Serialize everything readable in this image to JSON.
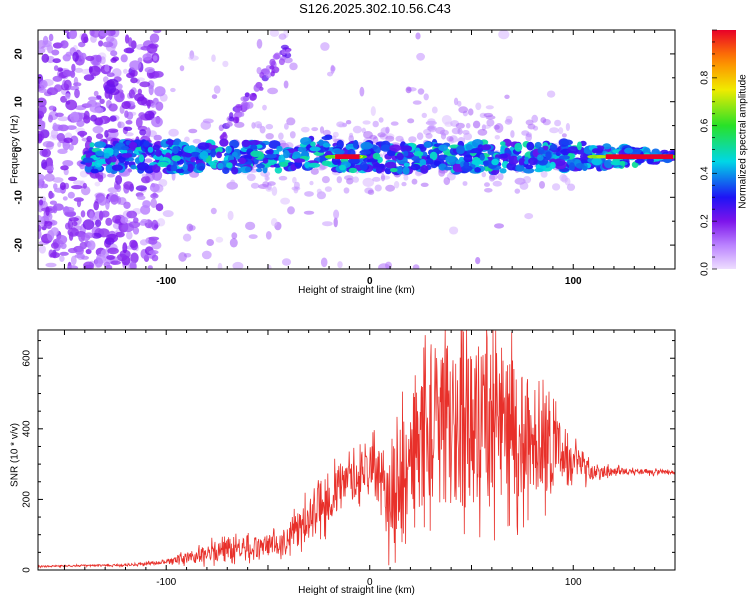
{
  "title": "S126.2025.302.10.56.C43",
  "chart_data": [
    {
      "type": "heatmap",
      "title": "",
      "xlabel": "Height of straight line (km)",
      "ylabel": "Frequency (Hz)",
      "xlim": [
        -163,
        150
      ],
      "ylim": [
        -25,
        25
      ],
      "xticks": [
        -100,
        0,
        100
      ],
      "yticks": [
        -20,
        -10,
        0,
        10,
        20
      ],
      "colorbar": {
        "label": "Normalized spectral amplitude",
        "range": [
          0,
          1
        ],
        "ticks": [
          "0.0",
          "0.2",
          "0.4",
          "0.6",
          "0.8"
        ]
      },
      "features": {
        "band_center_hz": -1.5,
        "band_half_width_hz": 3,
        "band_start_km": -140,
        "peak_segments_km": [
          [
            -20,
            -4
          ],
          [
            108,
            150
          ]
        ],
        "diagonal_arc_km": [
          -75,
          -38
        ],
        "noise_region_km": [
          -163,
          -110
        ]
      }
    },
    {
      "type": "line",
      "title": "",
      "xlabel": "Height of straight line (km)",
      "ylabel": "SNR (10 * v/v)",
      "xlim": [
        -163,
        150
      ],
      "ylim": [
        0,
        680
      ],
      "xticks": [
        -100,
        0,
        100
      ],
      "yticks": [
        0,
        200,
        400,
        600
      ],
      "series": [
        {
          "name": "SNR",
          "color": "#e8302a",
          "envelope_x": [
            -163,
            -120,
            -100,
            -80,
            -70,
            -60,
            -50,
            -40,
            -30,
            -20,
            -10,
            0,
            10,
            20,
            30,
            40,
            50,
            60,
            70,
            80,
            90,
            100,
            110,
            120,
            130,
            150
          ],
          "envelope_y": [
            10,
            14,
            22,
            45,
            65,
            60,
            70,
            90,
            150,
            200,
            250,
            300,
            200,
            320,
            420,
            400,
            420,
            430,
            400,
            370,
            350,
            300,
            280,
            280,
            280,
            275
          ],
          "amplitude": [
            2,
            3,
            6,
            25,
            35,
            30,
            30,
            35,
            60,
            70,
            60,
            60,
            130,
            170,
            220,
            230,
            230,
            230,
            200,
            160,
            120,
            60,
            20,
            12,
            8,
            6
          ]
        }
      ]
    }
  ]
}
